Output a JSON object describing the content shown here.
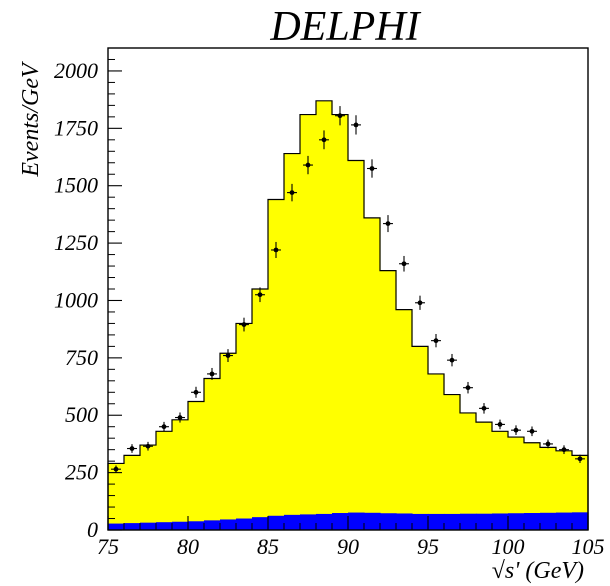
{
  "chart_data": {
    "type": "bar",
    "title": "DELPHI",
    "xlabel": "√s' (GeV)",
    "ylabel": "Events/GeV",
    "xlim": [
      75,
      105
    ],
    "ylim": [
      0,
      2100
    ],
    "grid": false,
    "x_ticks": [
      "75",
      "80",
      "85",
      "90",
      "95",
      "100",
      "105"
    ],
    "y_ticks": [
      "0",
      "250",
      "500",
      "750",
      "1000",
      "1250",
      "1500",
      "1750",
      "2000"
    ],
    "bin_edges": [
      75,
      76,
      77,
      78,
      79,
      80,
      81,
      82,
      83,
      84,
      85,
      86,
      87,
      88,
      89,
      90,
      91,
      92,
      93,
      94,
      95,
      96,
      97,
      98,
      99,
      100,
      101,
      102,
      103,
      104,
      105
    ],
    "series": [
      {
        "name": "",
        "kind": "histogram",
        "color": "#ffff00",
        "values": [
          290,
          325,
          370,
          430,
          480,
          560,
          660,
          770,
          900,
          1050,
          1440,
          1640,
          1810,
          1870,
          1810,
          1610,
          1360,
          1130,
          960,
          800,
          680,
          590,
          510,
          470,
          430,
          405,
          380,
          360,
          345,
          325
        ]
      },
      {
        "name": "",
        "kind": "histogram",
        "color": "#0000ff",
        "values": [
          28,
          30,
          32,
          34,
          36,
          38,
          42,
          46,
          50,
          56,
          62,
          66,
          68,
          70,
          74,
          76,
          75,
          73,
          72,
          70,
          70,
          70,
          71,
          71,
          72,
          73,
          74,
          75,
          76,
          77
        ]
      },
      {
        "name": "",
        "kind": "points_with_errors",
        "color": "#000000",
        "x": [
          75.5,
          76.5,
          77.5,
          78.5,
          79.5,
          80.5,
          81.5,
          82.5,
          83.5,
          84.5,
          85.5,
          86.5,
          87.5,
          88.5,
          89.5,
          90.5,
          91.5,
          92.5,
          93.5,
          94.5,
          95.5,
          96.5,
          97.5,
          98.5,
          99.5,
          100.5,
          101.5,
          102.5,
          103.5,
          104.5
        ],
        "y": [
          265,
          355,
          365,
          450,
          490,
          600,
          680,
          760,
          895,
          1025,
          1220,
          1470,
          1590,
          1700,
          1805,
          1765,
          1575,
          1335,
          1160,
          990,
          825,
          740,
          620,
          530,
          460,
          435,
          430,
          375,
          350,
          310
        ],
        "yerr": [
          16,
          19,
          19,
          21,
          22,
          24,
          26,
          28,
          30,
          32,
          35,
          38,
          40,
          41,
          42,
          42,
          40,
          37,
          34,
          31,
          29,
          27,
          25,
          23,
          21,
          21,
          21,
          19,
          19,
          18
        ]
      }
    ]
  }
}
